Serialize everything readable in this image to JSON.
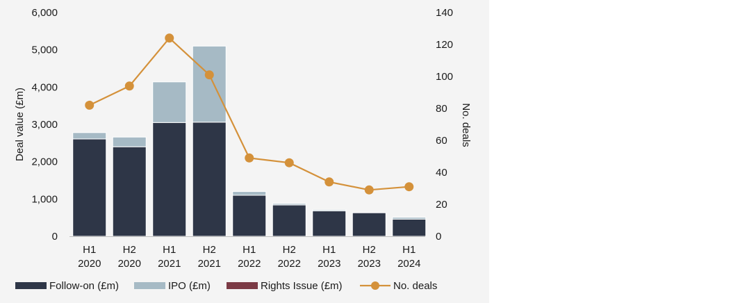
{
  "chart_data": {
    "type": "bar",
    "title": "",
    "categories": [
      [
        "H1",
        "2020"
      ],
      [
        "H2",
        "2020"
      ],
      [
        "H1",
        "2021"
      ],
      [
        "H2",
        "2021"
      ],
      [
        "H1",
        "2022"
      ],
      [
        "H2",
        "2022"
      ],
      [
        "H1",
        "2023"
      ],
      [
        "H2",
        "2023"
      ],
      [
        "H1",
        "2024"
      ]
    ],
    "series": [
      {
        "name": "Follow-on (£m)",
        "type": "bar",
        "stack": "value",
        "color": "#2e3647",
        "values": [
          2610,
          2400,
          3050,
          3060,
          1100,
          840,
          680,
          630,
          460
        ]
      },
      {
        "name": "IPO (£m)",
        "type": "bar",
        "stack": "value",
        "color": "#a6bac5",
        "values": [
          170,
          260,
          1090,
          2040,
          100,
          40,
          30,
          0,
          50
        ]
      },
      {
        "name": "Rights Issue (£m)",
        "type": "bar",
        "stack": "value",
        "color": "#7b3a45",
        "values": [
          0,
          0,
          0,
          0,
          0,
          0,
          0,
          0,
          0
        ]
      },
      {
        "name": "No. deals",
        "type": "line",
        "axis": "right",
        "color": "#d4913a",
        "values": [
          82,
          94,
          124,
          101,
          49,
          46,
          34,
          29,
          31
        ]
      }
    ],
    "ylabel": "Deal value (£m)",
    "ylim": [
      0,
      6000
    ],
    "yticks": [
      "6,000",
      "5,000",
      "4,000",
      "3,000",
      "2,000",
      "1,000",
      "0"
    ],
    "y2label": "No. deals",
    "y2lim": [
      0,
      140
    ],
    "y2ticks": [
      "140",
      "120",
      "100",
      "80",
      "60",
      "40",
      "20",
      "0"
    ],
    "grid": false,
    "legend_position": "bottom"
  }
}
